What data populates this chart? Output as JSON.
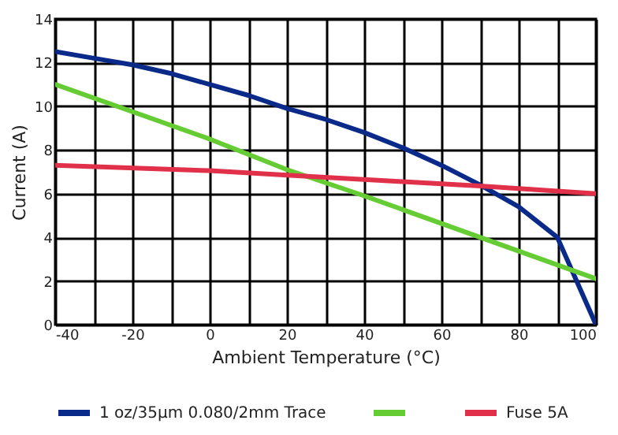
{
  "chart_data": {
    "type": "line",
    "xlabel": "Ambient Temperature (°C)",
    "ylabel": "Current (A)",
    "xlim": [
      -40,
      100
    ],
    "ylim": [
      0,
      14
    ],
    "xticks": [
      -40,
      {
        "value": -30,
        "label": null
      },
      -20,
      {
        "value": -10,
        "label": null
      },
      0,
      {
        "value": 10,
        "label": null
      },
      20,
      {
        "value": 30,
        "label": null
      },
      40,
      {
        "value": 50,
        "label": null
      },
      60,
      {
        "value": 70,
        "label": null
      },
      80,
      {
        "value": 90,
        "label": null
      },
      100
    ],
    "yticks": [
      0,
      2,
      4,
      6,
      8,
      10,
      12,
      14
    ],
    "grid": true,
    "legend": "bottom",
    "line_style": "solid",
    "marker": "none",
    "series": [
      {
        "name": "1 oz/35μm 0.080/2mm Trace",
        "color": "#0a2a8a",
        "x": [
          -40,
          -30,
          -20,
          -10,
          0,
          10,
          20,
          30,
          40,
          50,
          60,
          70,
          80,
          90,
          100
        ],
        "values": [
          12.5,
          12.2,
          11.9,
          11.5,
          11,
          10.5,
          9.9,
          9.4,
          8.8,
          8.1,
          7.3,
          6.4,
          5.4,
          4.0,
          0
        ]
      },
      {
        "color": "#66cc33",
        "x": [
          -40,
          0,
          20,
          40,
          70,
          100
        ],
        "values": [
          11,
          8.5,
          7.1,
          5.9,
          4.0,
          2.1
        ]
      },
      {
        "name": "Fuse 5A",
        "color": "#e0304a",
        "x": [
          -40,
          0,
          20,
          50,
          70,
          100
        ],
        "values": [
          7.3,
          7.05,
          6.85,
          6.55,
          6.35,
          6.0
        ]
      }
    ]
  }
}
